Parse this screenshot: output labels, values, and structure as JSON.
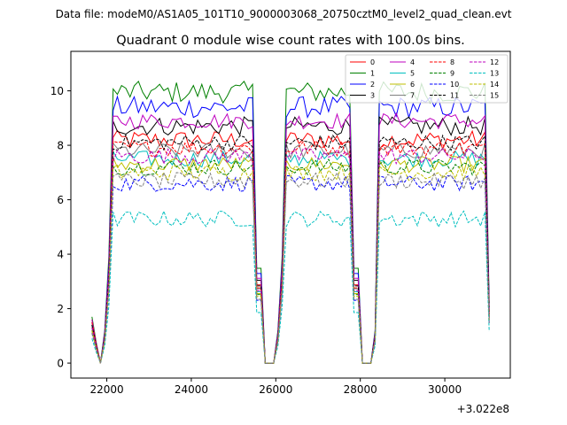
{
  "chart_data": {
    "type": "line",
    "suptitle": "Data file: modeM0/AS1A05_101T10_9000003068_20750cztM0_level2_quad_clean.evt",
    "title": "Quadrant 0 module wise count rates with 100.0s bins.",
    "xlabel": "",
    "ylabel": "",
    "x_offset_label": "+3.022e8",
    "xlim": [
      21150,
      31550
    ],
    "ylim": [
      -0.55,
      11.45
    ],
    "x_ticks": [
      22000,
      24000,
      26000,
      28000,
      30000
    ],
    "y_ticks": [
      0,
      2,
      4,
      6,
      8,
      10
    ],
    "legend_position": "upper-right",
    "legend_columns": 4,
    "segments": [
      {
        "rise_start": 21950,
        "plateau_start": 22150,
        "plateau_end": 25450,
        "fall_end": 25650
      },
      {
        "rise_start": 26050,
        "plateau_start": 26250,
        "plateau_end": 27750,
        "fall_end": 27950
      },
      {
        "rise_start": 28350,
        "plateau_start": 28450,
        "plateau_end": 30950,
        "fall_end": 31050
      }
    ],
    "series": [
      {
        "name": "0",
        "color": "#ff0000",
        "style": "solid",
        "level": 8.2,
        "noise": 0.35,
        "start": 1.6
      },
      {
        "name": "1",
        "color": "#008000",
        "style": "solid",
        "level": 9.95,
        "noise": 0.4,
        "start": 1.7
      },
      {
        "name": "2",
        "color": "#0000ff",
        "style": "solid",
        "level": 9.4,
        "noise": 0.4,
        "start": 1.5
      },
      {
        "name": "3",
        "color": "#000000",
        "style": "solid",
        "level": 8.7,
        "noise": 0.35,
        "start": 1.4
      },
      {
        "name": "4",
        "color": "#bf00bf",
        "style": "solid",
        "level": 8.9,
        "noise": 0.3,
        "start": 1.6
      },
      {
        "name": "5",
        "color": "#00bfbf",
        "style": "solid",
        "level": 7.5,
        "noise": 0.3,
        "start": 1.3
      },
      {
        "name": "6",
        "color": "#bfbf00",
        "style": "solid",
        "level": 7.3,
        "noise": 0.3,
        "start": 1.2
      },
      {
        "name": "7",
        "color": "#808080",
        "style": "solid",
        "level": 7.8,
        "noise": 0.3,
        "start": 1.3
      },
      {
        "name": "8",
        "color": "#ff0000",
        "style": "dashed",
        "level": 7.9,
        "noise": 0.3,
        "start": 1.5
      },
      {
        "name": "9",
        "color": "#008000",
        "style": "dashed",
        "level": 7.2,
        "noise": 0.3,
        "start": 1.2
      },
      {
        "name": "10",
        "color": "#0000ff",
        "style": "dashed",
        "level": 6.6,
        "noise": 0.3,
        "start": 1.1
      },
      {
        "name": "11",
        "color": "#000000",
        "style": "dashed",
        "level": 8.1,
        "noise": 0.3,
        "start": 1.4
      },
      {
        "name": "12",
        "color": "#bf00bf",
        "style": "dashed",
        "level": 7.6,
        "noise": 0.3,
        "start": 1.3
      },
      {
        "name": "13",
        "color": "#00bfbf",
        "style": "dashed",
        "level": 5.3,
        "noise": 0.3,
        "start": 0.9
      },
      {
        "name": "14",
        "color": "#bfbf00",
        "style": "dashed",
        "level": 7.0,
        "noise": 0.3,
        "start": 1.2
      },
      {
        "name": "15",
        "color": "#808080",
        "style": "dashed",
        "level": 6.7,
        "noise": 0.3,
        "start": 1.1
      }
    ]
  }
}
